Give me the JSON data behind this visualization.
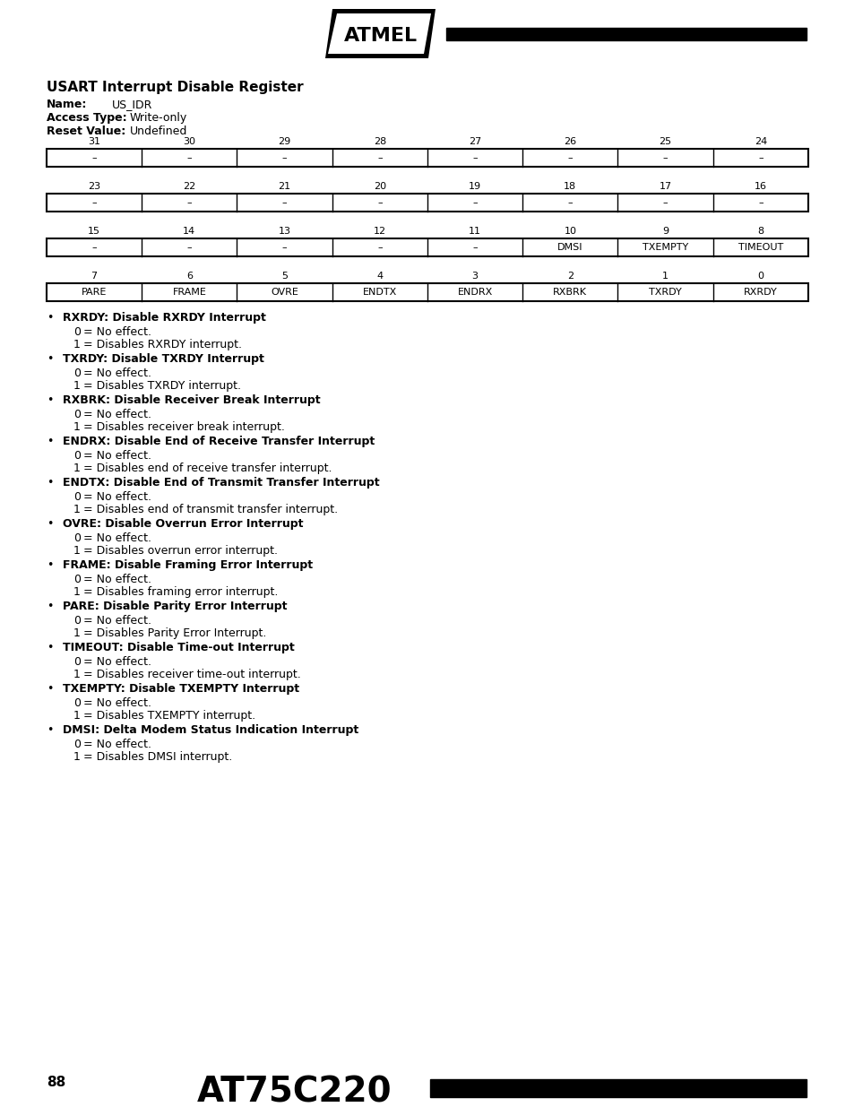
{
  "title": "USART Interrupt Disable Register",
  "name_label": "Name:",
  "name_value": "US_IDR",
  "access_label": "Access Type:",
  "access_value": "Write-only",
  "reset_label": "Reset Value:",
  "reset_value": "Undefined",
  "row1_bits": [
    "31",
    "30",
    "29",
    "28",
    "27",
    "26",
    "25",
    "24"
  ],
  "row1_cells": [
    "–",
    "–",
    "–",
    "–",
    "–",
    "–",
    "–",
    "–"
  ],
  "row2_bits": [
    "23",
    "22",
    "21",
    "20",
    "19",
    "18",
    "17",
    "16"
  ],
  "row2_cells": [
    "–",
    "–",
    "–",
    "–",
    "–",
    "–",
    "–",
    "–"
  ],
  "row3_bits": [
    "15",
    "14",
    "13",
    "12",
    "11",
    "10",
    "9",
    "8"
  ],
  "row3_cells": [
    "–",
    "–",
    "–",
    "–",
    "–",
    "DMSI",
    "TXEMPTY",
    "TIMEOUT"
  ],
  "row4_bits": [
    "7",
    "6",
    "5",
    "4",
    "3",
    "2",
    "1",
    "0"
  ],
  "row4_cells": [
    "PARE",
    "FRAME",
    "OVRE",
    "ENDTX",
    "ENDRX",
    "RXBRK",
    "TXRDY",
    "RXRDY"
  ],
  "bullet_items": [
    {
      "bold": "RXRDY: Disable RXRDY Interrupt",
      "lines": [
        "0 = No effect.",
        "1 = Disables RXRDY interrupt."
      ]
    },
    {
      "bold": "TXRDY: Disable TXRDY Interrupt",
      "lines": [
        "0 = No effect.",
        "1 = Disables TXRDY interrupt."
      ]
    },
    {
      "bold": "RXBRK: Disable Receiver Break Interrupt",
      "lines": [
        "0 = No effect.",
        "1 = Disables receiver break interrupt."
      ]
    },
    {
      "bold": "ENDRX: Disable End of Receive Transfer Interrupt",
      "lines": [
        "0 = No effect.",
        "1 = Disables end of receive transfer interrupt."
      ]
    },
    {
      "bold": "ENDTX: Disable End of Transmit Transfer Interrupt",
      "lines": [
        "0 = No effect.",
        "1 = Disables end of transmit transfer interrupt."
      ]
    },
    {
      "bold": "OVRE: Disable Overrun Error Interrupt",
      "lines": [
        "0 = No effect.",
        "1 = Disables overrun error interrupt."
      ]
    },
    {
      "bold": "FRAME: Disable Framing Error Interrupt",
      "lines": [
        "0 = No effect.",
        "1 = Disables framing error interrupt."
      ]
    },
    {
      "bold": "PARE: Disable Parity Error Interrupt",
      "lines": [
        "0 = No effect.",
        "1 = Disables Parity Error Interrupt."
      ]
    },
    {
      "bold": "TIMEOUT: Disable Time-out Interrupt",
      "lines": [
        "0 = No effect.",
        "1 = Disables receiver time-out interrupt."
      ]
    },
    {
      "bold": "TXEMPTY: Disable TXEMPTY Interrupt",
      "lines": [
        "0 = No effect.",
        "1 = Disables TXEMPTY interrupt."
      ]
    },
    {
      "bold": "DMSI: Delta Modem Status Indication Interrupt",
      "lines": [
        "0 = No effect.",
        "1 = Disables DMSI interrupt."
      ]
    }
  ],
  "footer_page": "88",
  "footer_chip": "AT75C220",
  "bg_color": "#ffffff",
  "text_color": "#000000"
}
